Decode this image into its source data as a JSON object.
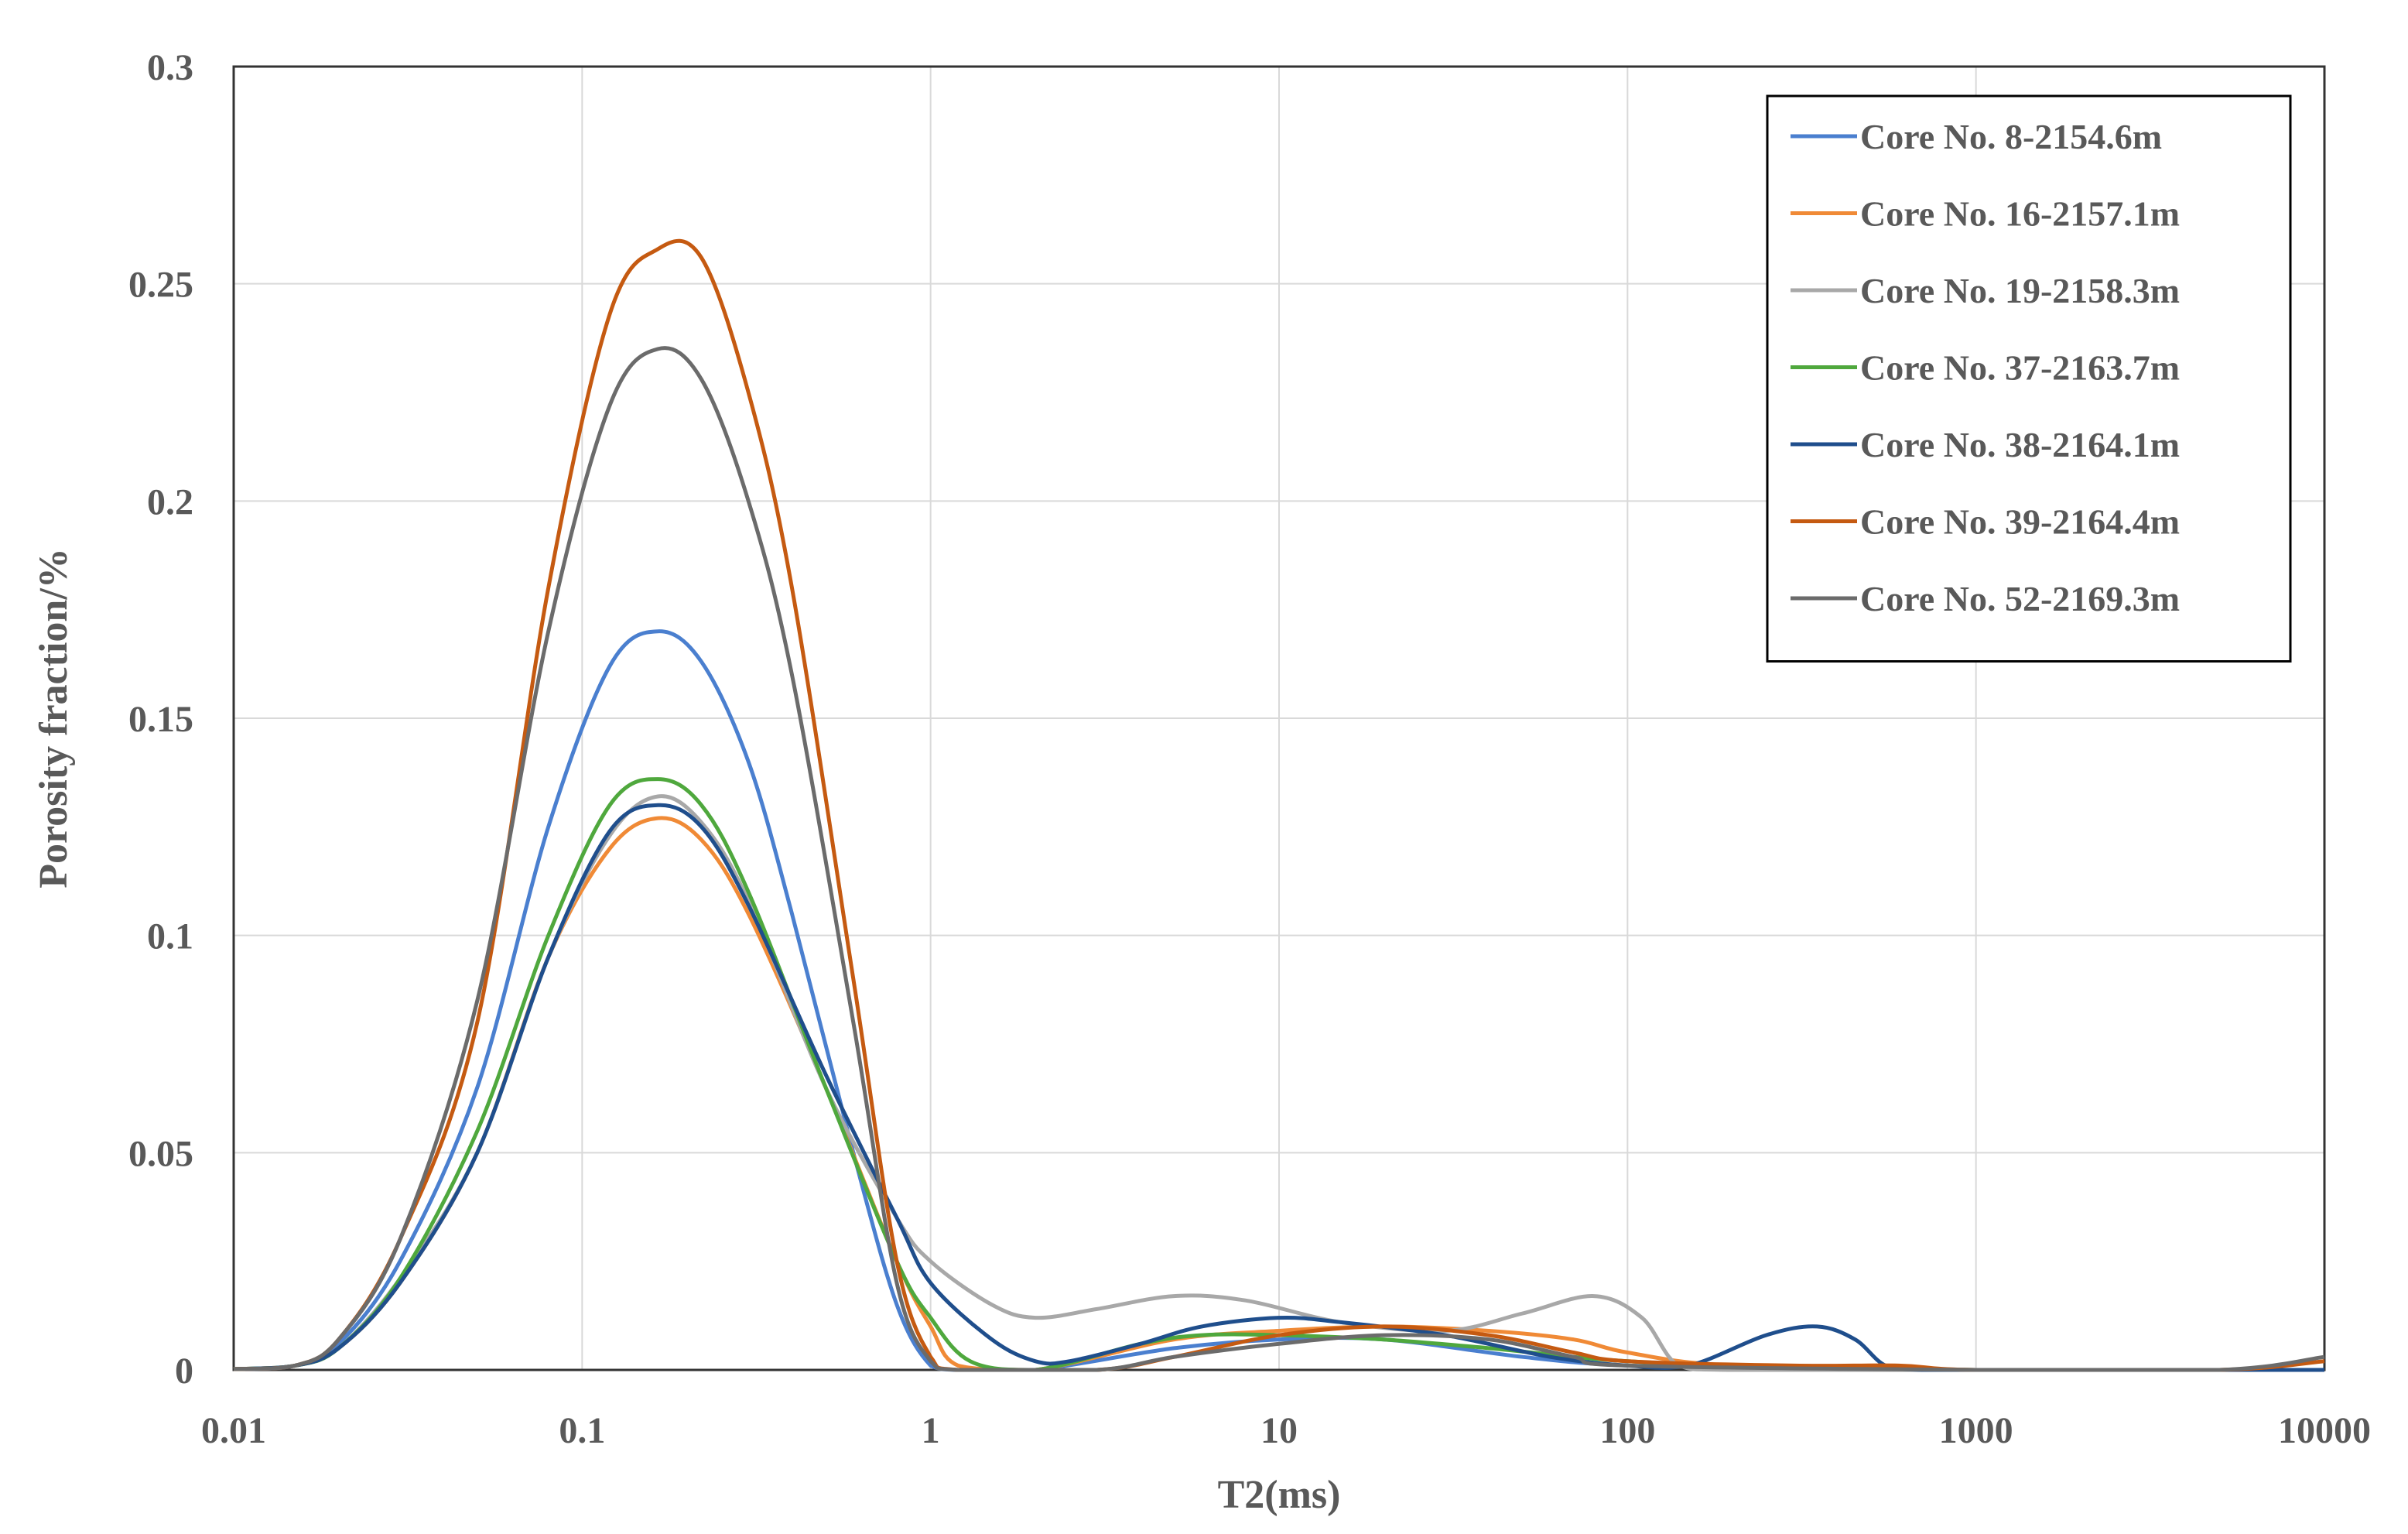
{
  "chart_data": {
    "type": "line",
    "title": "",
    "xlabel": "T2(ms)",
    "ylabel": "Porosity fraction/%",
    "x_scale": "log",
    "xlim": [
      0.01,
      10000
    ],
    "ylim": [
      0,
      0.3
    ],
    "x_ticks": [
      "0.01",
      "0.1",
      "1",
      "10",
      "100",
      "1000",
      "10000"
    ],
    "y_ticks": [
      "0",
      "0.05",
      "0.1",
      "0.15",
      "0.2",
      "0.25",
      "0.3"
    ],
    "grid": true,
    "legend_position": "top-right",
    "series": [
      {
        "name": "Core No. 8-2154.6m",
        "color": "#4a7fcf",
        "points": [
          [
            0.01,
            0.0002
          ],
          [
            0.015,
            0.001
          ],
          [
            0.02,
            0.006
          ],
          [
            0.03,
            0.025
          ],
          [
            0.05,
            0.065
          ],
          [
            0.08,
            0.125
          ],
          [
            0.12,
            0.162
          ],
          [
            0.165,
            0.17
          ],
          [
            0.22,
            0.163
          ],
          [
            0.3,
            0.14
          ],
          [
            0.4,
            0.105
          ],
          [
            0.6,
            0.05
          ],
          [
            0.8,
            0.015
          ],
          [
            1,
            0.001
          ],
          [
            1.2,
            0.0
          ],
          [
            2,
            0.0
          ],
          [
            5,
            0.005
          ],
          [
            10,
            0.007
          ],
          [
            20,
            0.007
          ],
          [
            50,
            0.003
          ],
          [
            100,
            0.001
          ],
          [
            300,
            0.0005
          ],
          [
            1000,
            0.0
          ],
          [
            10000,
            0.0
          ]
        ]
      },
      {
        "name": "Core No. 16-2157.1m",
        "color": "#f08a36",
        "points": [
          [
            0.01,
            0.0002
          ],
          [
            0.015,
            0.001
          ],
          [
            0.02,
            0.005
          ],
          [
            0.03,
            0.02
          ],
          [
            0.05,
            0.05
          ],
          [
            0.08,
            0.095
          ],
          [
            0.12,
            0.12
          ],
          [
            0.165,
            0.127
          ],
          [
            0.22,
            0.122
          ],
          [
            0.3,
            0.105
          ],
          [
            0.5,
            0.065
          ],
          [
            0.8,
            0.025
          ],
          [
            1,
            0.01
          ],
          [
            1.2,
            0.001
          ],
          [
            2,
            0.0
          ],
          [
            5,
            0.007
          ],
          [
            10,
            0.009
          ],
          [
            20,
            0.01
          ],
          [
            40,
            0.009
          ],
          [
            70,
            0.007
          ],
          [
            100,
            0.004
          ],
          [
            200,
            0.001
          ],
          [
            1000,
            0.0
          ],
          [
            10000,
            0.0
          ]
        ]
      },
      {
        "name": "Core No. 19-2158.3m",
        "color": "#a8a8a8",
        "points": [
          [
            0.01,
            0.0002
          ],
          [
            0.015,
            0.001
          ],
          [
            0.02,
            0.005
          ],
          [
            0.03,
            0.021
          ],
          [
            0.05,
            0.05
          ],
          [
            0.08,
            0.095
          ],
          [
            0.12,
            0.123
          ],
          [
            0.165,
            0.132
          ],
          [
            0.22,
            0.126
          ],
          [
            0.3,
            0.108
          ],
          [
            0.5,
            0.065
          ],
          [
            0.8,
            0.035
          ],
          [
            1,
            0.025
          ],
          [
            1.5,
            0.015
          ],
          [
            2,
            0.012
          ],
          [
            3,
            0.014
          ],
          [
            5,
            0.017
          ],
          [
            8,
            0.016
          ],
          [
            15,
            0.011
          ],
          [
            30,
            0.009
          ],
          [
            50,
            0.013
          ],
          [
            80,
            0.017
          ],
          [
            110,
            0.012
          ],
          [
            140,
            0.001
          ],
          [
            200,
            0.0
          ],
          [
            1000,
            0.0
          ],
          [
            10000,
            0.0
          ]
        ]
      },
      {
        "name": "Core No. 37-2163.7m",
        "color": "#4fa83d",
        "points": [
          [
            0.01,
            0.0002
          ],
          [
            0.015,
            0.001
          ],
          [
            0.02,
            0.005
          ],
          [
            0.03,
            0.021
          ],
          [
            0.05,
            0.055
          ],
          [
            0.08,
            0.1
          ],
          [
            0.12,
            0.13
          ],
          [
            0.165,
            0.136
          ],
          [
            0.22,
            0.13
          ],
          [
            0.3,
            0.11
          ],
          [
            0.5,
            0.065
          ],
          [
            0.8,
            0.025
          ],
          [
            1,
            0.012
          ],
          [
            1.3,
            0.002
          ],
          [
            2,
            0.0
          ],
          [
            4,
            0.006
          ],
          [
            6,
            0.008
          ],
          [
            10,
            0.008
          ],
          [
            20,
            0.007
          ],
          [
            40,
            0.005
          ],
          [
            70,
            0.003
          ],
          [
            100,
            0.002
          ],
          [
            200,
            0.001
          ],
          [
            1000,
            0.0
          ],
          [
            10000,
            0.0
          ]
        ]
      },
      {
        "name": "Core No. 38-2164.1m",
        "color": "#1f4e8c",
        "points": [
          [
            0.01,
            0.0002
          ],
          [
            0.015,
            0.001
          ],
          [
            0.02,
            0.005
          ],
          [
            0.03,
            0.02
          ],
          [
            0.05,
            0.05
          ],
          [
            0.08,
            0.095
          ],
          [
            0.12,
            0.124
          ],
          [
            0.165,
            0.13
          ],
          [
            0.22,
            0.125
          ],
          [
            0.3,
            0.107
          ],
          [
            0.5,
            0.068
          ],
          [
            0.8,
            0.035
          ],
          [
            1,
            0.02
          ],
          [
            1.5,
            0.007
          ],
          [
            2,
            0.002
          ],
          [
            2.5,
            0.002
          ],
          [
            4,
            0.006
          ],
          [
            6,
            0.01
          ],
          [
            10,
            0.012
          ],
          [
            15,
            0.011
          ],
          [
            30,
            0.008
          ],
          [
            60,
            0.003
          ],
          [
            100,
            0.001
          ],
          [
            150,
            0.001
          ],
          [
            250,
            0.008
          ],
          [
            350,
            0.01
          ],
          [
            450,
            0.007
          ],
          [
            550,
            0.001
          ],
          [
            700,
            0.0
          ],
          [
            1000,
            0.0
          ],
          [
            10000,
            0.0
          ]
        ]
      },
      {
        "name": "Core No. 39-2164.4m",
        "color": "#c55a11",
        "points": [
          [
            0.01,
            0.0002
          ],
          [
            0.015,
            0.001
          ],
          [
            0.02,
            0.007
          ],
          [
            0.03,
            0.03
          ],
          [
            0.05,
            0.08
          ],
          [
            0.08,
            0.18
          ],
          [
            0.12,
            0.243
          ],
          [
            0.165,
            0.258
          ],
          [
            0.22,
            0.256
          ],
          [
            0.3,
            0.225
          ],
          [
            0.4,
            0.18
          ],
          [
            0.6,
            0.09
          ],
          [
            0.8,
            0.025
          ],
          [
            1,
            0.003
          ],
          [
            1.2,
            0.0
          ],
          [
            3,
            0.0
          ],
          [
            5,
            0.003
          ],
          [
            10,
            0.008
          ],
          [
            20,
            0.01
          ],
          [
            40,
            0.008
          ],
          [
            70,
            0.004
          ],
          [
            100,
            0.002
          ],
          [
            300,
            0.001
          ],
          [
            600,
            0.001
          ],
          [
            1000,
            0.0
          ],
          [
            5000,
            0.0
          ],
          [
            10000,
            0.002
          ]
        ]
      },
      {
        "name": "Core No. 52-2169.3m",
        "color": "#6b6b6b",
        "points": [
          [
            0.01,
            0.0002
          ],
          [
            0.015,
            0.001
          ],
          [
            0.02,
            0.007
          ],
          [
            0.03,
            0.03
          ],
          [
            0.05,
            0.085
          ],
          [
            0.08,
            0.17
          ],
          [
            0.12,
            0.222
          ],
          [
            0.165,
            0.235
          ],
          [
            0.22,
            0.228
          ],
          [
            0.3,
            0.2
          ],
          [
            0.4,
            0.16
          ],
          [
            0.6,
            0.08
          ],
          [
            0.8,
            0.02
          ],
          [
            1,
            0.002
          ],
          [
            1.2,
            0.0
          ],
          [
            3,
            0.0
          ],
          [
            5,
            0.003
          ],
          [
            10,
            0.006
          ],
          [
            20,
            0.008
          ],
          [
            40,
            0.007
          ],
          [
            70,
            0.003
          ],
          [
            100,
            0.001
          ],
          [
            1000,
            0.0
          ],
          [
            5000,
            0.0
          ],
          [
            10000,
            0.003
          ]
        ]
      }
    ]
  }
}
